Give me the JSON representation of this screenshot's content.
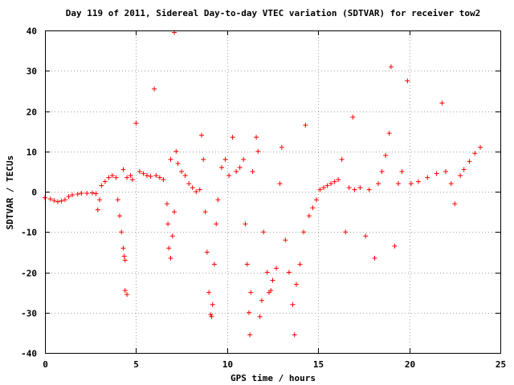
{
  "chart_data": {
    "type": "scatter",
    "title": "Day 119 of 2011, Sidereal Day-to-day VTEC variation (SDTVAR) for receiver tow2",
    "xlabel": "GPS time / hours",
    "ylabel": "SDTVAR / TECUs",
    "xlim": [
      0,
      25
    ],
    "ylim": [
      -40,
      40
    ],
    "xticks": [
      0,
      5,
      10,
      15,
      20,
      25
    ],
    "yticks": [
      -40,
      -30,
      -20,
      -10,
      0,
      10,
      20,
      30,
      40
    ],
    "grid": true,
    "marker": "plus",
    "marker_color": "#ff0000",
    "series": [
      {
        "points": [
          [
            0.0,
            -1.5
          ],
          [
            0.3,
            -1.8
          ],
          [
            0.5,
            -2.2
          ],
          [
            0.7,
            -2.5
          ],
          [
            0.9,
            -2.3
          ],
          [
            1.1,
            -2.0
          ],
          [
            1.3,
            -1.2
          ],
          [
            1.5,
            -0.8
          ],
          [
            1.8,
            -0.6
          ],
          [
            2.0,
            -0.4
          ],
          [
            2.3,
            -0.4
          ],
          [
            2.6,
            -0.3
          ],
          [
            2.8,
            -0.5
          ],
          [
            2.9,
            -4.5
          ],
          [
            3.0,
            -2.0
          ],
          [
            3.1,
            1.5
          ],
          [
            3.3,
            2.5
          ],
          [
            3.5,
            3.5
          ],
          [
            3.7,
            4.0
          ],
          [
            3.9,
            3.5
          ],
          [
            4.0,
            -2.0
          ],
          [
            4.1,
            -6.0
          ],
          [
            4.2,
            -10.0
          ],
          [
            4.3,
            -14.0
          ],
          [
            4.35,
            -16.0
          ],
          [
            4.4,
            -17.0
          ],
          [
            4.4,
            -24.5
          ],
          [
            4.5,
            -25.5
          ],
          [
            4.3,
            5.5
          ],
          [
            4.5,
            3.5
          ],
          [
            4.7,
            4.0
          ],
          [
            4.8,
            3.0
          ],
          [
            5.0,
            17.0
          ],
          [
            5.2,
            5.0
          ],
          [
            5.4,
            4.5
          ],
          [
            5.6,
            4.0
          ],
          [
            5.8,
            3.8
          ],
          [
            6.0,
            25.5
          ],
          [
            6.1,
            4.0
          ],
          [
            6.3,
            3.5
          ],
          [
            6.5,
            3.0
          ],
          [
            6.7,
            -3.0
          ],
          [
            6.75,
            -8.0
          ],
          [
            6.8,
            -14.0
          ],
          [
            6.9,
            -16.5
          ],
          [
            7.0,
            -11.0
          ],
          [
            7.1,
            -5.0
          ],
          [
            6.9,
            8.0
          ],
          [
            7.1,
            39.5
          ],
          [
            7.2,
            10.0
          ],
          [
            7.3,
            7.0
          ],
          [
            7.5,
            5.0
          ],
          [
            7.7,
            4.0
          ],
          [
            7.9,
            2.0
          ],
          [
            8.1,
            1.0
          ],
          [
            8.3,
            0.0
          ],
          [
            8.5,
            0.5
          ],
          [
            8.6,
            14.0
          ],
          [
            8.7,
            8.0
          ],
          [
            8.8,
            -5.0
          ],
          [
            8.9,
            -15.0
          ],
          [
            9.0,
            -25.0
          ],
          [
            9.1,
            -30.5
          ],
          [
            9.15,
            -31.0
          ],
          [
            9.2,
            -28.0
          ],
          [
            9.3,
            -18.0
          ],
          [
            9.4,
            -8.0
          ],
          [
            9.5,
            -2.0
          ],
          [
            9.7,
            6.0
          ],
          [
            9.9,
            8.0
          ],
          [
            10.1,
            4.0
          ],
          [
            10.3,
            13.5
          ],
          [
            10.5,
            5.0
          ],
          [
            10.7,
            6.0
          ],
          [
            10.9,
            8.0
          ],
          [
            11.0,
            -8.0
          ],
          [
            11.1,
            -18.0
          ],
          [
            11.2,
            -30.0
          ],
          [
            11.25,
            -35.5
          ],
          [
            11.3,
            -25.0
          ],
          [
            11.4,
            5.0
          ],
          [
            11.6,
            13.5
          ],
          [
            11.7,
            10.0
          ],
          [
            11.8,
            -31.0
          ],
          [
            11.9,
            -27.0
          ],
          [
            12.0,
            -10.0
          ],
          [
            12.2,
            -20.0
          ],
          [
            12.3,
            -25.0
          ],
          [
            12.4,
            -24.5
          ],
          [
            12.5,
            -22.0
          ],
          [
            12.7,
            -19.0
          ],
          [
            12.9,
            2.0
          ],
          [
            13.0,
            11.0
          ],
          [
            13.2,
            -12.0
          ],
          [
            13.4,
            -20.0
          ],
          [
            13.6,
            -28.0
          ],
          [
            13.7,
            -35.5
          ],
          [
            13.8,
            -23.0
          ],
          [
            14.0,
            -18.0
          ],
          [
            14.2,
            -10.0
          ],
          [
            14.3,
            16.5
          ],
          [
            14.5,
            -6.0
          ],
          [
            14.7,
            -4.0
          ],
          [
            14.9,
            -2.0
          ],
          [
            15.1,
            0.5
          ],
          [
            15.3,
            1.0
          ],
          [
            15.5,
            1.5
          ],
          [
            15.7,
            2.0
          ],
          [
            15.9,
            2.5
          ],
          [
            16.1,
            3.0
          ],
          [
            16.3,
            8.0
          ],
          [
            16.5,
            -10.0
          ],
          [
            16.7,
            1.0
          ],
          [
            16.9,
            18.5
          ],
          [
            17.0,
            0.5
          ],
          [
            17.3,
            1.0
          ],
          [
            17.6,
            -11.0
          ],
          [
            17.8,
            0.5
          ],
          [
            18.1,
            -16.5
          ],
          [
            18.3,
            2.0
          ],
          [
            18.5,
            5.0
          ],
          [
            18.7,
            9.0
          ],
          [
            18.9,
            14.5
          ],
          [
            19.0,
            31.0
          ],
          [
            19.2,
            -13.5
          ],
          [
            19.4,
            2.0
          ],
          [
            19.6,
            5.0
          ],
          [
            19.9,
            27.5
          ],
          [
            20.1,
            2.0
          ],
          [
            20.5,
            2.5
          ],
          [
            21.0,
            3.5
          ],
          [
            21.5,
            4.5
          ],
          [
            21.8,
            22.0
          ],
          [
            22.0,
            5.0
          ],
          [
            22.3,
            2.0
          ],
          [
            22.5,
            -3.0
          ],
          [
            22.8,
            4.0
          ],
          [
            23.0,
            5.5
          ],
          [
            23.3,
            7.5
          ],
          [
            23.6,
            9.5
          ],
          [
            23.9,
            11.0
          ]
        ]
      }
    ]
  }
}
